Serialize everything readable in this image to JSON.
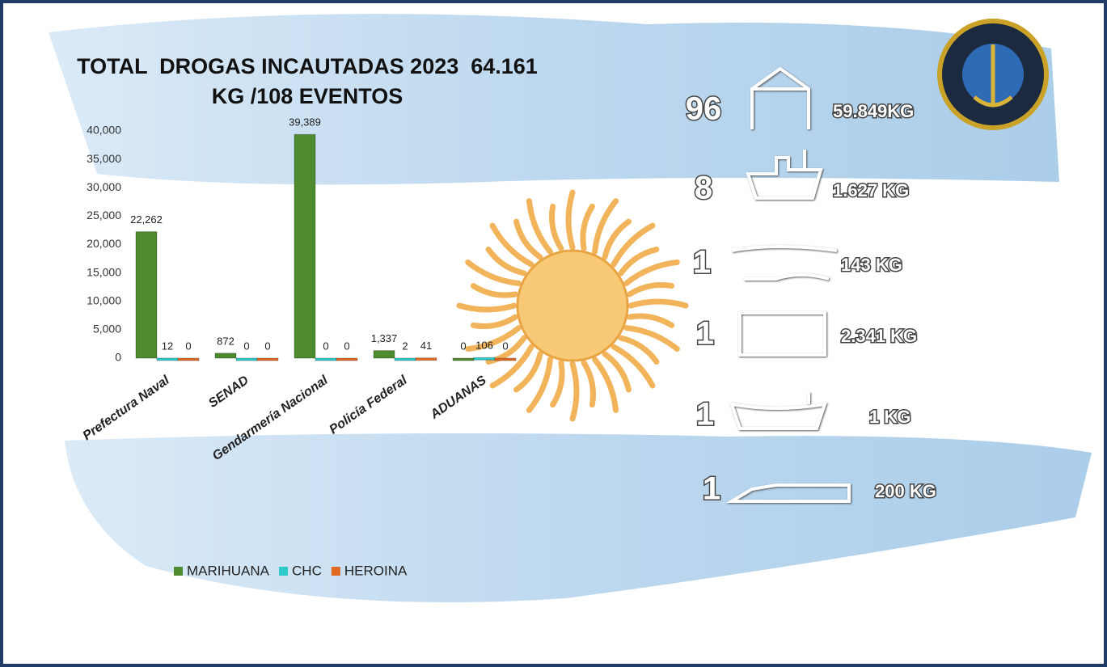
{
  "chart_data": {
    "type": "bar",
    "title": "TOTAL  DROGAS INCAUTADAS 2023  64.161 KG /108 EVENTOS",
    "categories": [
      "Prefectura Naval",
      "SENAD",
      "Gendarmería Nacional",
      "Policía Federal",
      "ADUANAS"
    ],
    "series": [
      {
        "name": "MARIHUANA",
        "color": "#4e8a2e",
        "values": [
          22262,
          872,
          39389,
          1337,
          0
        ],
        "value_labels": [
          "22,262",
          "872",
          "39,389",
          "1,337",
          "0"
        ]
      },
      {
        "name": "CHC",
        "color": "#2ec9c9",
        "values": [
          12,
          0,
          0,
          2,
          106
        ]
      },
      {
        "name": "HEROINA",
        "color": "#e06a24",
        "values": [
          0,
          0,
          0,
          41,
          0
        ]
      }
    ],
    "ylim": [
      0,
      40000
    ],
    "yticks": [
      0,
      {
        "value": 5000,
        "label": "5,000"
      },
      {
        "value": 10000,
        "label": "10,000"
      },
      {
        "value": 15000,
        "label": "15,000"
      },
      {
        "value": 20000,
        "label": "20,000"
      },
      {
        "value": 25000,
        "label": "25,000"
      },
      {
        "value": 30000,
        "label": "30,000"
      },
      {
        "value": 35000,
        "label": "35,000"
      },
      {
        "value": 40000,
        "label": "40,000"
      }
    ],
    "grid": false
  },
  "events": [
    {
      "count": 96,
      "amount": "59.849KG"
    },
    {
      "count": 8,
      "amount": "1.627 KG"
    },
    {
      "count": 1,
      "amount": "143 KG"
    },
    {
      "count": 1,
      "amount": "2.341 KG"
    },
    {
      "count": 1,
      "amount": "1 KG"
    },
    {
      "count": 1,
      "amount": "200 KG"
    }
  ]
}
